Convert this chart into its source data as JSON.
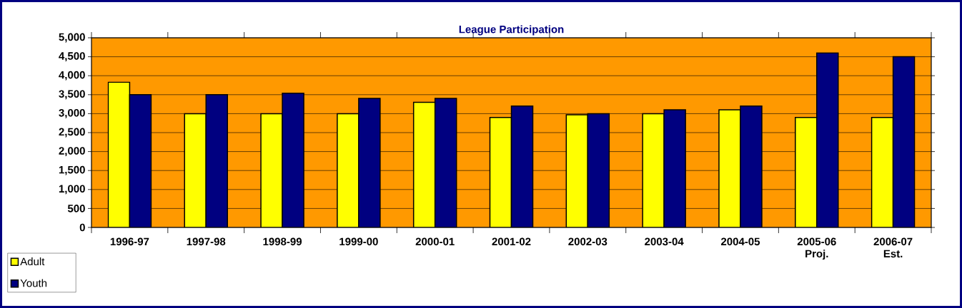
{
  "chart_data": {
    "type": "bar",
    "title": "League Participation",
    "categories": [
      "1996-97",
      "1997-98",
      "1998-99",
      "1999-00",
      "2000-01",
      "2001-02",
      "2002-03",
      "2003-04",
      "2004-05",
      "2005-06 Proj.",
      "2006-07 Est."
    ],
    "series": [
      {
        "name": "Adult",
        "color": "#ffff00",
        "values": [
          3830,
          3000,
          3000,
          3000,
          3300,
          2900,
          2970,
          3000,
          3100,
          2900,
          2900
        ]
      },
      {
        "name": "Youth",
        "color": "#000080",
        "values": [
          3500,
          3500,
          3540,
          3400,
          3400,
          3200,
          3000,
          3100,
          3200,
          4600,
          4500
        ]
      }
    ],
    "ylim": [
      0,
      5000
    ],
    "yticks": [
      0,
      500,
      {
        "value": 1000,
        "label": "1,000"
      },
      {
        "value": 1500,
        "label": "1,500"
      },
      {
        "value": 2000,
        "label": "2,000"
      },
      {
        "value": 2500,
        "label": "2,500"
      },
      {
        "value": 3000,
        "label": "3,000"
      },
      {
        "value": 3500,
        "label": "3,500"
      },
      {
        "value": 4000,
        "label": "4,000"
      },
      {
        "value": 4500,
        "label": "4,500"
      },
      {
        "value": 5000,
        "label": "5,000"
      }
    ],
    "grid": "y",
    "legend": "bottom left"
  }
}
